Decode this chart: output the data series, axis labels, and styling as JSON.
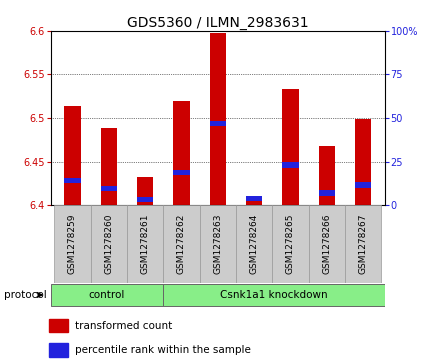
{
  "title": "GDS5360 / ILMN_2983631",
  "samples": [
    "GSM1278259",
    "GSM1278260",
    "GSM1278261",
    "GSM1278262",
    "GSM1278263",
    "GSM1278264",
    "GSM1278265",
    "GSM1278266",
    "GSM1278267"
  ],
  "red_values": [
    6.514,
    6.489,
    6.432,
    6.519,
    6.597,
    6.409,
    6.533,
    6.468,
    6.499
  ],
  "blue_values": [
    6.425,
    6.416,
    6.403,
    6.434,
    6.491,
    6.405,
    6.443,
    6.411,
    6.42
  ],
  "blue_bar_height": 0.006,
  "baseline": 6.4,
  "ylim": [
    6.4,
    6.6
  ],
  "y2lim": [
    0,
    100
  ],
  "yticks": [
    6.4,
    6.45,
    6.5,
    6.55,
    6.6
  ],
  "y2ticks": [
    0,
    25,
    50,
    75,
    100
  ],
  "y2ticklabels": [
    "0",
    "25",
    "50",
    "75",
    "100%"
  ],
  "n_control": 3,
  "control_label": "control",
  "knockdown_label": "Csnk1a1 knockdown",
  "protocol_label": "protocol",
  "bar_width": 0.45,
  "red_color": "#CC0000",
  "blue_color": "#2222DD",
  "green_color": "#88EE88",
  "group_bg_color": "#CCCCCC",
  "legend_red": "transformed count",
  "legend_blue": "percentile rank within the sample",
  "title_fontsize": 10,
  "tick_fontsize": 7,
  "label_fontsize": 7.5,
  "sample_fontsize": 6.5
}
